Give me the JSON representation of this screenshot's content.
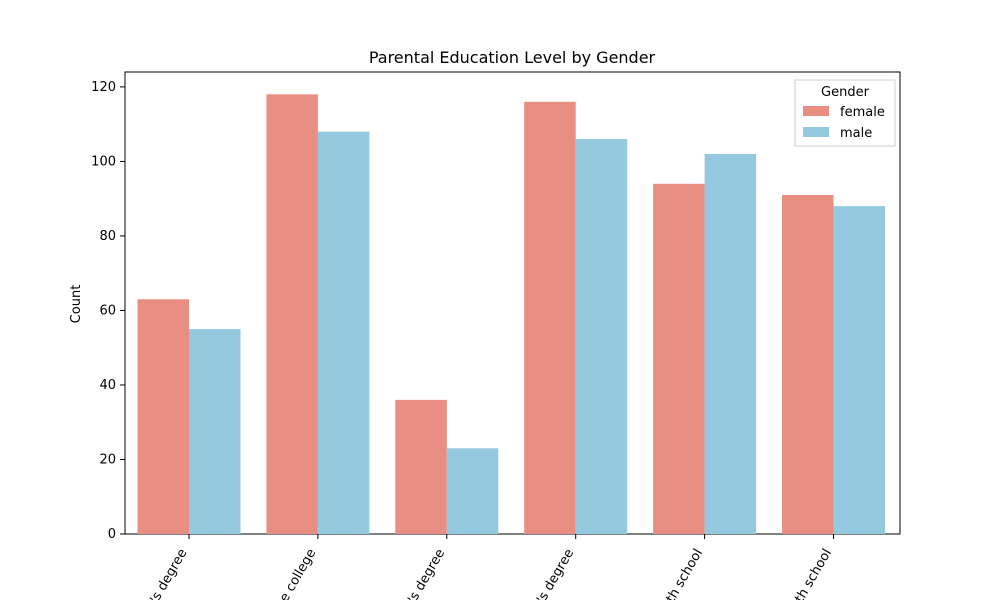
{
  "chart_data": {
    "type": "bar",
    "title": "Parental Education Level by Gender",
    "xlabel": "",
    "ylabel": "Count",
    "ylim": [
      0,
      124
    ],
    "yticks": [
      0,
      20,
      40,
      60,
      80,
      100,
      120
    ],
    "categories_visible": [
      "'s degree",
      "e college",
      "'s degree",
      "'s degree",
      "th school",
      "th school"
    ],
    "series": [
      {
        "name": "female",
        "color": "#e98e82",
        "values": [
          63,
          118,
          36,
          116,
          94,
          91
        ]
      },
      {
        "name": "male",
        "color": "#94c9df",
        "values": [
          55,
          108,
          23,
          106,
          102,
          88
        ]
      }
    ],
    "legend": {
      "title": "Gender",
      "placement": "top-right"
    },
    "grid": false
  }
}
